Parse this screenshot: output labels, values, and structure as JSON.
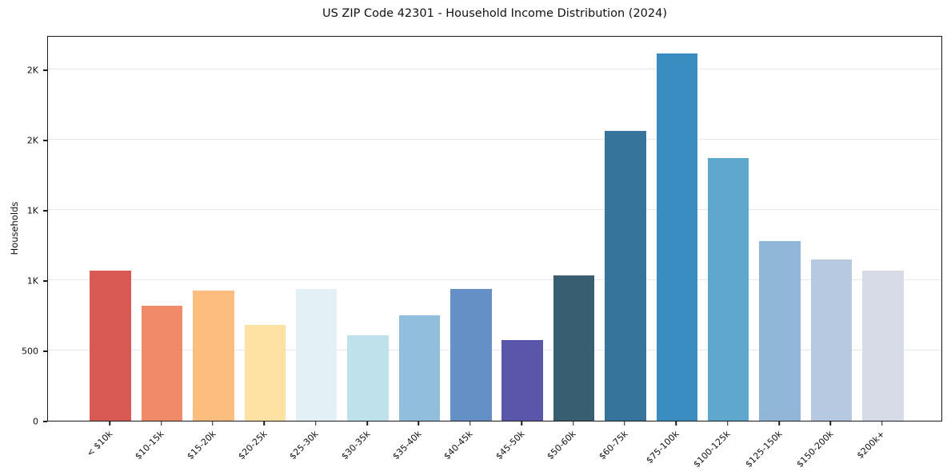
{
  "title": "US ZIP Code 42301 - Household Income Distribution (2024)",
  "chart_data": {
    "type": "bar",
    "title": "US ZIP Code 42301 - Household Income Distribution (2024)",
    "xlabel": "",
    "ylabel": "Households",
    "categories": [
      "< $10k",
      "$10-15k",
      "$15-20k",
      "$20-25k",
      "$25-30k",
      "$30-35k",
      "$35-40k",
      "$40-45k",
      "$45-50k",
      "$50-60k",
      "$60-75k",
      "$75-100k",
      "$100-125k",
      "$125-150k",
      "$150-200k",
      "$200k+"
    ],
    "values": [
      1068,
      818,
      926,
      682,
      938,
      608,
      750,
      936,
      574,
      1034,
      2063,
      2614,
      1869,
      1278,
      1148,
      1068
    ],
    "bar_colors": [
      "#d95a54",
      "#f08a68",
      "#fcbd7e",
      "#fde2a3",
      "#e3f1f6",
      "#bfe1ec",
      "#90bedc",
      "#6590c5",
      "#5a57aa",
      "#385e71",
      "#36749b",
      "#398dc1",
      "#60a7cd",
      "#90b6d8",
      "#b7c9e1",
      "#d7dae7"
    ],
    "ylim": [
      0,
      2745
    ],
    "yticks": {
      "values": [
        0,
        500,
        1000,
        1500,
        2000,
        2500
      ],
      "labels": [
        "0",
        "500",
        "1K",
        "1K",
        "2K",
        "2K"
      ]
    },
    "x_tick_rotation_deg": 45,
    "grid": "horizontal",
    "legend": "none",
    "background_color": "#ffffff",
    "gridline_color": "#e7e7e7",
    "spine_color": "#1a1a1a",
    "text_color": "#111111"
  }
}
